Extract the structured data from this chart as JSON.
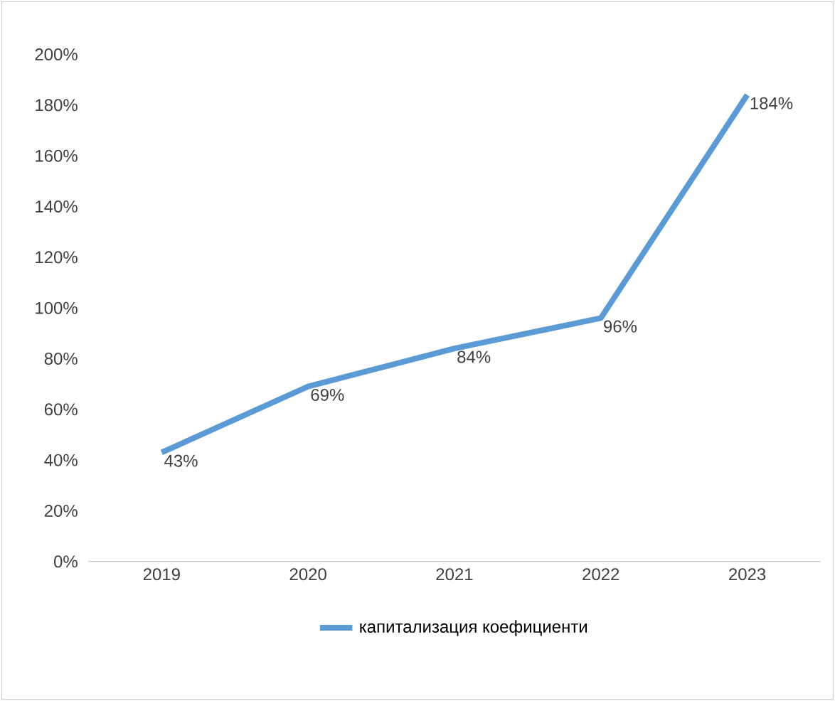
{
  "chart_data": {
    "type": "line",
    "categories": [
      "2019",
      "2020",
      "2021",
      "2022",
      "2023"
    ],
    "series": [
      {
        "name": "капитализация коефициенти",
        "color": "#5b9bd5",
        "values": [
          43,
          69,
          84,
          96,
          184
        ],
        "value_labels": [
          "43%",
          "69%",
          "84%",
          "96%",
          "184%"
        ]
      }
    ],
    "ylim": [
      0,
      200
    ],
    "yticks": [
      {
        "value": 0,
        "label": "0%"
      },
      {
        "value": 20,
        "label": "20%"
      },
      {
        "value": 40,
        "label": "40%"
      },
      {
        "value": 60,
        "label": "60%"
      },
      {
        "value": 80,
        "label": "80%"
      },
      {
        "value": 100,
        "label": "100%"
      },
      {
        "value": 120,
        "label": "120%"
      },
      {
        "value": 140,
        "label": "140%"
      },
      {
        "value": 160,
        "label": "160%"
      },
      {
        "value": 180,
        "label": "180%"
      },
      {
        "value": 200,
        "label": "200%"
      }
    ],
    "legend": "bottom",
    "marker": "none",
    "line_style": "solid",
    "grid": false
  }
}
